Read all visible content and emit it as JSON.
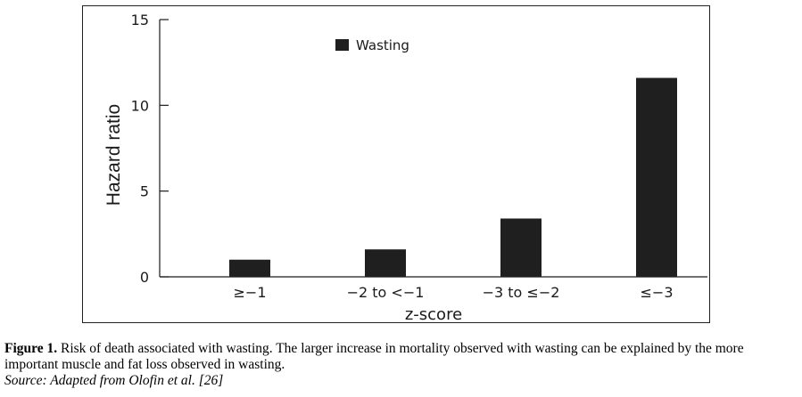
{
  "chart_data": {
    "type": "bar",
    "categories": [
      "≥−1",
      "−2 to <−1",
      "−3 to ≤−2",
      "≤−3"
    ],
    "series": [
      {
        "name": "Wasting",
        "values": [
          1.0,
          1.6,
          3.4,
          11.6
        ],
        "color": "#1f1f1f"
      }
    ],
    "title": "",
    "xlabel": "z-score",
    "ylabel": "Hazard ratio",
    "ylim": [
      0,
      15
    ],
    "yticks": [
      0,
      5,
      10,
      15
    ],
    "grid": false,
    "legend_position": "top-center"
  },
  "caption": {
    "figure_label": "Figure 1.",
    "text": " Risk of death associated with wasting. The larger increase in mortality observed with wasting can be explained by the more important muscle and fat loss observed in wasting.",
    "source": "Source: Adapted from Olofin et al. [26]"
  }
}
